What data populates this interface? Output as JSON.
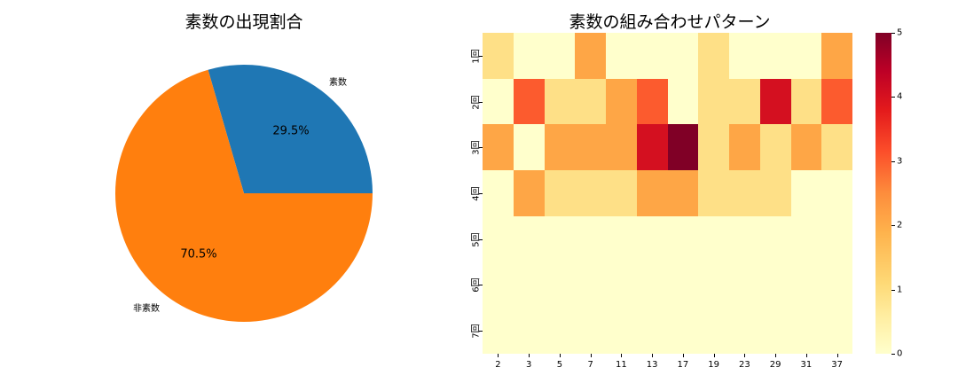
{
  "pie": {
    "title": "素数の出現割合",
    "labels": [
      "素数",
      "非素数"
    ],
    "pct_labels": [
      "29.5%",
      "70.5%"
    ],
    "colors": [
      "#1f77b4",
      "#ff7f0e"
    ]
  },
  "heatmap": {
    "title": "素数の組み合わせパターン",
    "x_labels": [
      "2",
      "3",
      "5",
      "7",
      "11",
      "13",
      "17",
      "19",
      "23",
      "29",
      "31",
      "37"
    ],
    "y_labels": [
      "1回",
      "2回",
      "3回",
      "4回",
      "5回",
      "6回",
      "7回"
    ],
    "colorbar_ticks": [
      "0",
      "1",
      "2",
      "3",
      "4",
      "5"
    ]
  },
  "chart_data": [
    {
      "type": "pie",
      "title": "素数の出現割合",
      "categories": [
        "素数",
        "非素数"
      ],
      "values": [
        29.5,
        70.5
      ],
      "colors": [
        "#1f77b4",
        "#ff7f0e"
      ],
      "start_angle": 0
    },
    {
      "type": "heatmap",
      "title": "素数の組み合わせパターン",
      "x": [
        "2",
        "3",
        "5",
        "7",
        "11",
        "13",
        "17",
        "19",
        "23",
        "29",
        "31",
        "37"
      ],
      "y": [
        "1回",
        "2回",
        "3回",
        "4回",
        "5回",
        "6回",
        "7回"
      ],
      "values": [
        [
          1,
          0,
          0,
          2,
          0,
          0,
          0,
          1,
          0,
          0,
          0,
          2
        ],
        [
          0,
          3,
          1,
          1,
          2,
          3,
          0,
          1,
          1,
          4,
          1,
          3
        ],
        [
          2,
          0,
          2,
          2,
          2,
          4,
          5,
          1,
          2,
          1,
          2,
          1
        ],
        [
          0,
          2,
          1,
          1,
          1,
          2,
          2,
          1,
          1,
          1,
          0,
          0
        ],
        [
          0,
          0,
          0,
          0,
          0,
          0,
          0,
          0,
          0,
          0,
          0,
          0
        ],
        [
          0,
          0,
          0,
          0,
          0,
          0,
          0,
          0,
          0,
          0,
          0,
          0
        ],
        [
          0,
          0,
          0,
          0,
          0,
          0,
          0,
          0,
          0,
          0,
          0,
          0
        ]
      ],
      "colormap": "YlOrRd",
      "vmin": 0,
      "vmax": 5,
      "colorbar_ticks": [
        0,
        1,
        2,
        3,
        4,
        5
      ]
    }
  ],
  "color_scale": [
    "#ffffcc",
    "#fee087",
    "#fea646",
    "#fc5b2e",
    "#d41020",
    "#800026"
  ]
}
